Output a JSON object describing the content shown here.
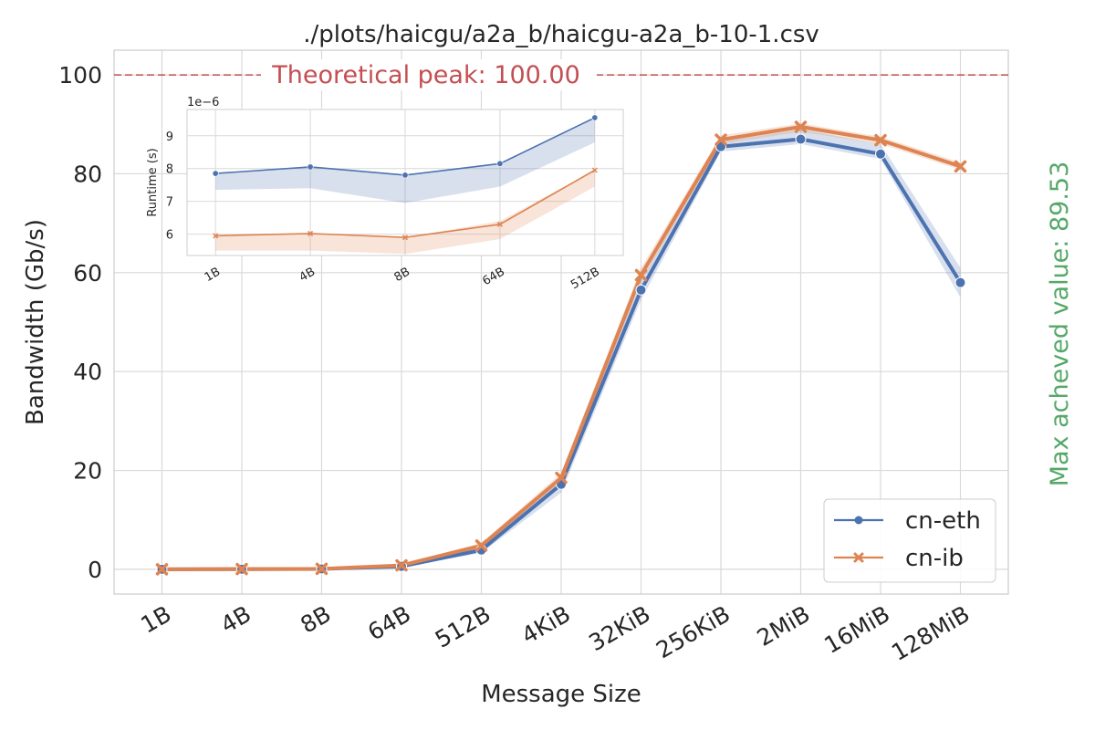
{
  "chart_data": {
    "type": "line",
    "title": "./plots/haicgu/a2a_b/haicgu-a2a_b-10-1.csv",
    "xlabel": "Message Size",
    "ylabel": "Bandwidth (Gb/s)",
    "categories": [
      "1B",
      "4B",
      "8B",
      "64B",
      "512B",
      "4KiB",
      "32KiB",
      "256KiB",
      "2MiB",
      "16MiB",
      "128MiB"
    ],
    "ylim": [
      -5,
      105
    ],
    "yticks": [
      0,
      20,
      40,
      60,
      80,
      100
    ],
    "grid": true,
    "legend_position": "bottom-right",
    "series": [
      {
        "name": "cn-eth",
        "color": "#4c72b0",
        "marker": "circle",
        "values": [
          0.01,
          0.04,
          0.08,
          0.6,
          3.9,
          17.2,
          56.5,
          85.5,
          87.0,
          84.0,
          58.0
        ],
        "band_low": [
          0.01,
          0.03,
          0.06,
          0.5,
          3.3,
          15.5,
          54.5,
          84.5,
          86.0,
          83.0,
          55.0
        ],
        "band_high": [
          0.02,
          0.05,
          0.09,
          0.8,
          4.5,
          18.5,
          58.5,
          86.5,
          89.0,
          86.0,
          61.0
        ]
      },
      {
        "name": "cn-ib",
        "color": "#dd8452",
        "marker": "x",
        "values": [
          0.01,
          0.05,
          0.1,
          0.8,
          4.8,
          18.5,
          59.5,
          86.9,
          89.5,
          86.8,
          81.5
        ],
        "band_low": [
          0.01,
          0.04,
          0.08,
          0.6,
          4.3,
          17.5,
          58.0,
          86.0,
          88.5,
          86.0,
          80.8
        ],
        "band_high": [
          0.02,
          0.06,
          0.12,
          1.0,
          5.3,
          19.5,
          61.0,
          87.8,
          90.2,
          87.5,
          82.3
        ]
      }
    ],
    "peak": {
      "label": "Theoretical peak: 100.00",
      "value": 100,
      "color": "#c44e52"
    },
    "max_achieved": {
      "label": "Max acheved value: 89.53",
      "color": "#55a868"
    },
    "inset": {
      "type": "line",
      "ylabel": "Runtime (s)",
      "offset_label": "1e−6",
      "categories": [
        "1B",
        "4B",
        "8B",
        "64B",
        "512B"
      ],
      "ylim": [
        5.35,
        9.8
      ],
      "yticks": [
        6,
        7,
        8,
        9
      ],
      "series": [
        {
          "name": "cn-eth",
          "color": "#4c72b0",
          "values": [
            7.85,
            8.05,
            7.8,
            8.15,
            9.55
          ],
          "band_low": [
            7.35,
            7.4,
            6.95,
            7.45,
            8.8
          ],
          "band_high": [
            7.85,
            8.05,
            7.8,
            8.15,
            9.55
          ]
        },
        {
          "name": "cn-ib",
          "color": "#dd8452",
          "values": [
            5.95,
            6.02,
            5.9,
            6.3,
            7.95
          ],
          "band_low": [
            5.5,
            5.5,
            5.4,
            5.85,
            7.45
          ],
          "band_high": [
            5.95,
            6.02,
            5.9,
            6.4,
            7.95
          ]
        }
      ]
    }
  }
}
